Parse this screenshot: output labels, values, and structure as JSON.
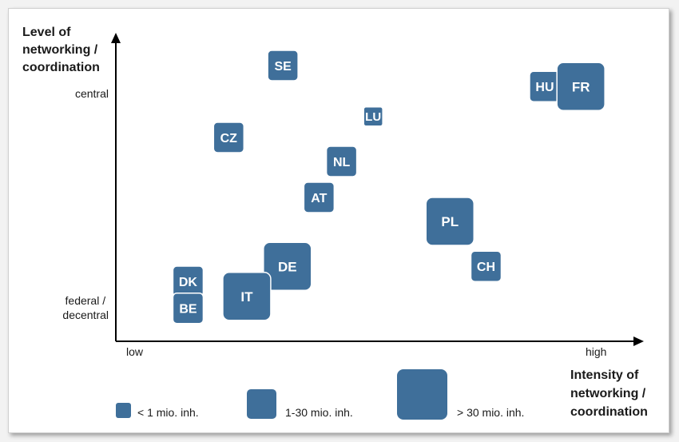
{
  "chart_data": {
    "type": "scatter",
    "title": "",
    "xlabel": [
      "Intensity of",
      "networking /",
      "coordination"
    ],
    "ylabel": [
      "Level of",
      "networking /",
      "coordination"
    ],
    "x_ticks": [
      "low",
      "high"
    ],
    "y_ticks": [
      [
        "central"
      ],
      [
        "federal /",
        "decentral"
      ]
    ],
    "point_color": "#3f6f9a",
    "size_classes": {
      "small": "< 1 mio. inh.",
      "medium": "1-30 mio. inh.",
      "large": "> 30 mio. inh."
    },
    "legend": [
      {
        "size": "small",
        "label": "< 1 mio. inh."
      },
      {
        "size": "medium",
        "label": "1-30 mio. inh."
      },
      {
        "size": "large",
        "label": "> 30 mio. inh."
      }
    ],
    "points": [
      {
        "label": "SE",
        "x": 3.7,
        "y": 9.2,
        "size": "medium"
      },
      {
        "label": "HU",
        "x": 9.5,
        "y": 8.5,
        "size": "medium"
      },
      {
        "label": "FR",
        "x": 10.3,
        "y": 8.5,
        "size": "large"
      },
      {
        "label": "LU",
        "x": 5.7,
        "y": 7.5,
        "size": "small"
      },
      {
        "label": "CZ",
        "x": 2.5,
        "y": 6.8,
        "size": "medium"
      },
      {
        "label": "NL",
        "x": 5.0,
        "y": 6.0,
        "size": "medium"
      },
      {
        "label": "AT",
        "x": 4.5,
        "y": 4.8,
        "size": "medium"
      },
      {
        "label": "PL",
        "x": 7.4,
        "y": 4.0,
        "size": "large"
      },
      {
        "label": "DE",
        "x": 3.8,
        "y": 2.5,
        "size": "large"
      },
      {
        "label": "CH",
        "x": 8.2,
        "y": 2.5,
        "size": "medium"
      },
      {
        "label": "DK",
        "x": 1.6,
        "y": 2.0,
        "size": "medium"
      },
      {
        "label": "IT",
        "x": 2.9,
        "y": 1.5,
        "size": "large"
      },
      {
        "label": "BE",
        "x": 1.6,
        "y": 1.1,
        "size": "medium"
      }
    ],
    "xlim": [
      0,
      11.5
    ],
    "ylim": [
      0,
      10
    ],
    "grid": false
  }
}
